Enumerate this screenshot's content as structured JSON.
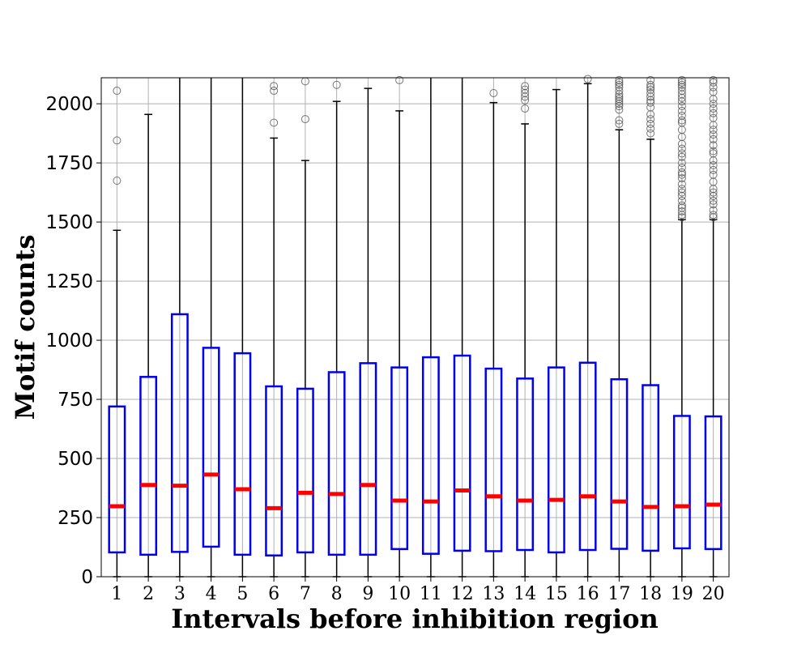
{
  "chart_data": {
    "type": "box",
    "title": "",
    "xlabel": "Intervals before inhibition region",
    "ylabel": "Motif counts",
    "ylim": [
      0,
      2110
    ],
    "yticks": [
      0,
      250,
      500,
      750,
      1000,
      1250,
      1500,
      1750,
      2000
    ],
    "grid": true,
    "categories": [
      "1",
      "2",
      "3",
      "4",
      "5",
      "6",
      "7",
      "8",
      "9",
      "10",
      "11",
      "12",
      "13",
      "14",
      "15",
      "16",
      "17",
      "18",
      "19",
      "20"
    ],
    "boxes": [
      {
        "label": "1",
        "whislo": 0,
        "q1": 103,
        "median": 298,
        "q3": 720,
        "whishi": 1465,
        "outliers": [
          1675,
          1845,
          2055
        ]
      },
      {
        "label": "2",
        "whislo": 0,
        "q1": 93,
        "median": 388,
        "q3": 845,
        "whishi": 1955,
        "outliers": []
      },
      {
        "label": "3",
        "whislo": 0,
        "q1": 105,
        "median": 385,
        "q3": 1110,
        "whishi": 2110,
        "outliers": []
      },
      {
        "label": "4",
        "whislo": 0,
        "q1": 127,
        "median": 432,
        "q3": 968,
        "whishi": 2110,
        "outliers": []
      },
      {
        "label": "5",
        "whislo": 0,
        "q1": 93,
        "median": 370,
        "q3": 945,
        "whishi": 2110,
        "outliers": []
      },
      {
        "label": "6",
        "whislo": 0,
        "q1": 90,
        "median": 290,
        "q3": 805,
        "whishi": 1855,
        "outliers": [
          1920,
          2055,
          2075
        ]
      },
      {
        "label": "7",
        "whislo": 0,
        "q1": 103,
        "median": 355,
        "q3": 795,
        "whishi": 1760,
        "outliers": [
          1935,
          2095
        ]
      },
      {
        "label": "8",
        "whislo": 0,
        "q1": 93,
        "median": 350,
        "q3": 865,
        "whishi": 2010,
        "outliers": [
          2080
        ]
      },
      {
        "label": "9",
        "whislo": 0,
        "q1": 93,
        "median": 388,
        "q3": 903,
        "whishi": 2065,
        "outliers": []
      },
      {
        "label": "10",
        "whislo": 0,
        "q1": 117,
        "median": 322,
        "q3": 885,
        "whishi": 1970,
        "outliers": [
          2100
        ]
      },
      {
        "label": "11",
        "whislo": 0,
        "q1": 97,
        "median": 318,
        "q3": 928,
        "whishi": 2110,
        "outliers": []
      },
      {
        "label": "12",
        "whislo": 0,
        "q1": 110,
        "median": 365,
        "q3": 935,
        "whishi": 2110,
        "outliers": []
      },
      {
        "label": "13",
        "whislo": 0,
        "q1": 108,
        "median": 340,
        "q3": 880,
        "whishi": 2005,
        "outliers": [
          2045
        ]
      },
      {
        "label": "14",
        "whislo": 0,
        "q1": 113,
        "median": 322,
        "q3": 838,
        "whishi": 1915,
        "outliers": [
          1980,
          2015,
          2030,
          2045,
          2060,
          2075
        ]
      },
      {
        "label": "15",
        "whislo": 0,
        "q1": 103,
        "median": 325,
        "q3": 885,
        "whishi": 2060,
        "outliers": []
      },
      {
        "label": "16",
        "whislo": 0,
        "q1": 113,
        "median": 340,
        "q3": 905,
        "whishi": 2085,
        "outliers": [
          2105
        ]
      },
      {
        "label": "17",
        "whislo": 0,
        "q1": 118,
        "median": 318,
        "q3": 835,
        "whishi": 1890,
        "outliers": [
          1915,
          1930,
          1975,
          1990,
          2000,
          2010,
          2020,
          2030,
          2040,
          2055,
          2070,
          2080,
          2090,
          2100
        ]
      },
      {
        "label": "18",
        "whislo": 0,
        "q1": 110,
        "median": 295,
        "q3": 810,
        "whishi": 1850,
        "outliers": [
          1875,
          1895,
          1915,
          1935,
          1955,
          1985,
          2005,
          2015,
          2030,
          2045,
          2060,
          2070,
          2080,
          2100
        ]
      },
      {
        "label": "19",
        "whislo": 0,
        "q1": 120,
        "median": 298,
        "q3": 680,
        "whishi": 1510,
        "outliers": [
          1520,
          1530,
          1545,
          1560,
          1570,
          1590,
          1610,
          1625,
          1640,
          1660,
          1685,
          1700,
          1710,
          1730,
          1750,
          1775,
          1790,
          1810,
          1830,
          1860,
          1890,
          1920,
          1930,
          1950,
          1970,
          1990,
          2010,
          2025,
          2040,
          2055,
          2070,
          2080,
          2090,
          2100
        ]
      },
      {
        "label": "20",
        "whislo": 0,
        "q1": 117,
        "median": 305,
        "q3": 678,
        "whishi": 1510,
        "outliers": [
          1520,
          1530,
          1550,
          1575,
          1590,
          1610,
          1625,
          1640,
          1670,
          1700,
          1720,
          1740,
          1760,
          1790,
          1800,
          1825,
          1850,
          1870,
          1890,
          1910,
          1940,
          1960,
          1980,
          2000,
          2020,
          2050,
          2070,
          2090,
          2100
        ]
      }
    ],
    "colors": {
      "box": "#0000ee",
      "median": "#ff0000",
      "whisker": "#000000",
      "outlier": "#555555",
      "grid": "#b0b0b0"
    }
  }
}
